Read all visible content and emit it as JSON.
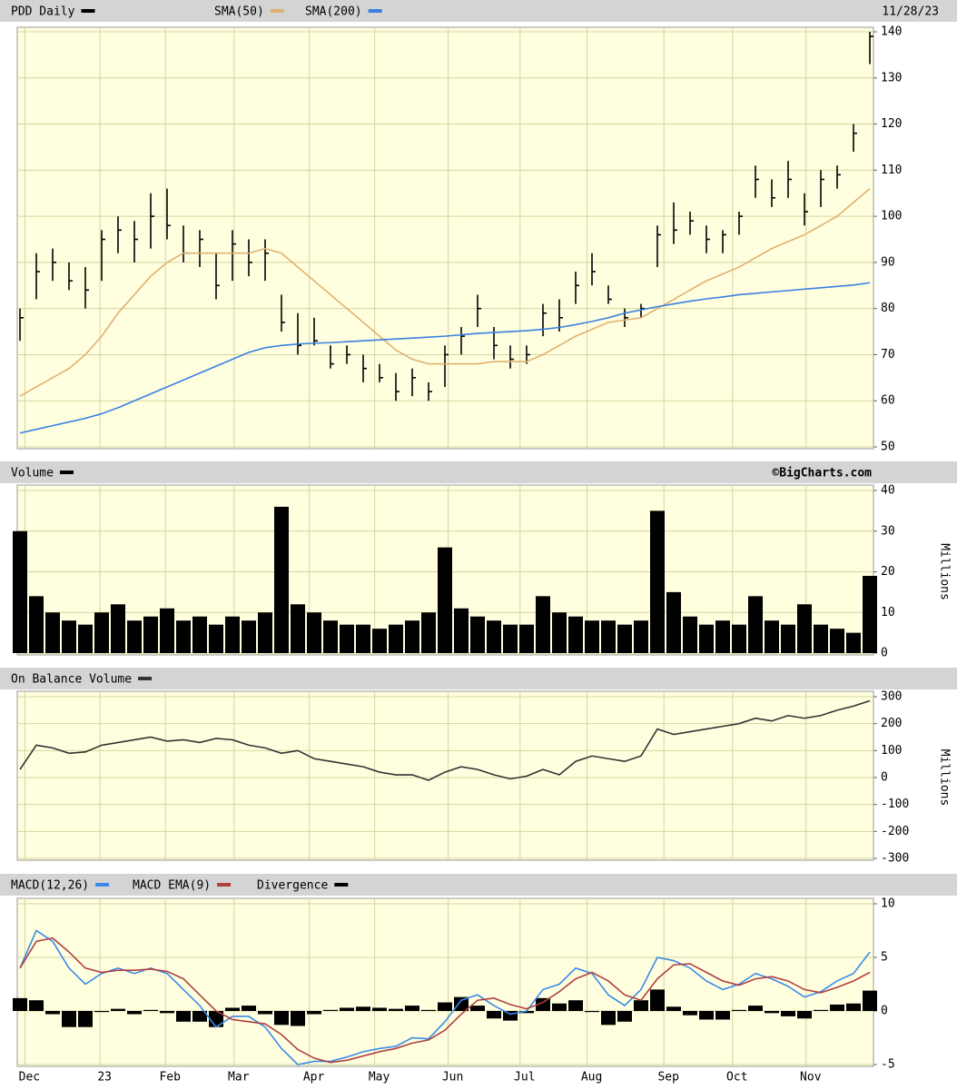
{
  "chart_data": [
    {
      "type": "ohlc",
      "date": "11/28/23",
      "xlim": [
        0,
        52
      ],
      "ylim": [
        50,
        140
      ],
      "yticks": [
        50,
        60,
        70,
        80,
        90,
        100,
        110,
        120,
        130,
        140
      ],
      "grid": true,
      "series": [
        {
          "name": "PDD Daily",
          "color": "#000000",
          "high": [
            80,
            92,
            93,
            90,
            89,
            97,
            100,
            99,
            105,
            106,
            98,
            97,
            92,
            97,
            95,
            95,
            83,
            79,
            78,
            72,
            72,
            70,
            68,
            66,
            67,
            64,
            72,
            76,
            83,
            76,
            72,
            72,
            81,
            82,
            88,
            92,
            85,
            80,
            81,
            98,
            103,
            101,
            98,
            97,
            101,
            111,
            108,
            112,
            105,
            110,
            111,
            120,
            140
          ],
          "low": [
            73,
            82,
            86,
            84,
            80,
            86,
            92,
            90,
            93,
            95,
            90,
            89,
            82,
            86,
            87,
            86,
            75,
            70,
            72,
            67,
            68,
            64,
            64,
            60,
            61,
            60,
            63,
            70,
            76,
            69,
            67,
            68,
            74,
            75,
            81,
            85,
            81,
            76,
            78,
            89,
            94,
            96,
            92,
            92,
            96,
            104,
            102,
            104,
            98,
            102,
            106,
            114,
            133
          ],
          "close": [
            78,
            88,
            90,
            86,
            84,
            95,
            97,
            95,
            100,
            98,
            92,
            95,
            85,
            94,
            90,
            92,
            77,
            72,
            73,
            68,
            70,
            67,
            65,
            62,
            65,
            62,
            70,
            74,
            80,
            72,
            69,
            70,
            79,
            78,
            85,
            88,
            82,
            78,
            80,
            96,
            97,
            99,
            95,
            96,
            100,
            108,
            104,
            108,
            101,
            108,
            109,
            118,
            139
          ]
        },
        {
          "name": "SMA(50)",
          "color": "#e0b070",
          "values": [
            61,
            63,
            65,
            67,
            70,
            74,
            79,
            83,
            87,
            90,
            92,
            92,
            92,
            92,
            92,
            93,
            92,
            89,
            86,
            83,
            80,
            77,
            74,
            71,
            69,
            68,
            68,
            68,
            68,
            68.5,
            68.5,
            68.5,
            70,
            72,
            74,
            75.5,
            77,
            77.5,
            78,
            80,
            82,
            84,
            86,
            87.5,
            89,
            91,
            93,
            94.5,
            96,
            98,
            100,
            103,
            106
          ]
        },
        {
          "name": "SMA(200)",
          "color": "#3a80e0",
          "values": [
            53,
            53.8,
            54.6,
            55.4,
            56.2,
            57.2,
            58.5,
            60,
            61.5,
            63,
            64.5,
            66,
            67.5,
            69,
            70.5,
            71.5,
            72,
            72.3,
            72.5,
            72.6,
            72.8,
            73,
            73.2,
            73.4,
            73.6,
            73.8,
            74,
            74.3,
            74.6,
            74.8,
            75,
            75.2,
            75.5,
            75.9,
            76.5,
            77.2,
            78,
            79,
            79.7,
            80.4,
            81,
            81.6,
            82.1,
            82.5,
            83,
            83.3,
            83.6,
            83.9,
            84.2,
            84.5,
            84.8,
            85.1,
            85.6
          ]
        }
      ]
    },
    {
      "type": "bar",
      "credit": "©BigCharts.com",
      "ylabel": "Millions",
      "xlim": [
        0,
        52
      ],
      "ylim": [
        0,
        40
      ],
      "yticks": [
        0,
        10,
        20,
        30,
        40
      ],
      "grid": true,
      "series": [
        {
          "name": "Volume",
          "color": "#000000",
          "values": [
            30,
            14,
            10,
            8,
            7,
            10,
            12,
            8,
            9,
            11,
            8,
            9,
            7,
            9,
            8,
            10,
            36,
            12,
            10,
            8,
            7,
            7,
            6,
            7,
            8,
            10,
            26,
            11,
            9,
            8,
            7,
            7,
            14,
            10,
            9,
            8,
            8,
            7,
            8,
            35,
            15,
            9,
            7,
            8,
            7,
            14,
            8,
            7,
            12,
            7,
            6,
            5,
            19
          ]
        }
      ]
    },
    {
      "type": "line",
      "ylabel": "Millions",
      "xlim": [
        0,
        52
      ],
      "ylim": [
        -300,
        300
      ],
      "yticks": [
        -300,
        -200,
        -100,
        0,
        100,
        200,
        300
      ],
      "grid": true,
      "series": [
        {
          "name": "On Balance Volume",
          "color": "#333333",
          "values": [
            30,
            120,
            110,
            90,
            95,
            120,
            130,
            140,
            150,
            135,
            140,
            130,
            145,
            140,
            120,
            110,
            90,
            100,
            70,
            60,
            50,
            40,
            20,
            10,
            10,
            -10,
            20,
            40,
            30,
            10,
            -5,
            5,
            30,
            10,
            60,
            80,
            70,
            60,
            80,
            180,
            160,
            170,
            180,
            190,
            200,
            220,
            210,
            230,
            220,
            230,
            250,
            265,
            285
          ]
        }
      ]
    },
    {
      "type": "line",
      "xlim": [
        0,
        52
      ],
      "ylim": [
        -5,
        10
      ],
      "yticks": [
        -5,
        0,
        5,
        10
      ],
      "grid": true,
      "xticks": [
        {
          "value": 0.3,
          "label": "Dec"
        },
        {
          "value": 4.9,
          "label": "23"
        },
        {
          "value": 8.9,
          "label": "Feb"
        },
        {
          "value": 13.1,
          "label": "Mar"
        },
        {
          "value": 17.7,
          "label": "Apr"
        },
        {
          "value": 21.7,
          "label": "May"
        },
        {
          "value": 26.2,
          "label": "Jun"
        },
        {
          "value": 30.6,
          "label": "Jul"
        },
        {
          "value": 34.7,
          "label": "Aug"
        },
        {
          "value": 39.4,
          "label": "Sep"
        },
        {
          "value": 43.6,
          "label": "Oct"
        },
        {
          "value": 48.1,
          "label": "Nov"
        }
      ],
      "series": [
        {
          "name": "MACD(12,26)",
          "color": "#3a8ae8",
          "values": [
            4,
            7.5,
            6.5,
            4,
            2.5,
            3.5,
            4,
            3.5,
            4,
            3.5,
            2,
            0.5,
            -1.5,
            -0.5,
            -0.5,
            -1.5,
            -3.5,
            -5,
            -4.7,
            -4.7,
            -4.3,
            -3.8,
            -3.5,
            -3.3,
            -2.5,
            -2.6,
            -1,
            1,
            1.5,
            0.5,
            -0.3,
            0,
            2,
            2.5,
            4,
            3.5,
            1.5,
            0.5,
            2,
            5,
            4.7,
            4,
            2.8,
            2,
            2.5,
            3.5,
            3,
            2.3,
            1.3,
            1.8,
            2.8,
            3.5,
            5.5
          ]
        },
        {
          "name": "MACD EMA(9)",
          "color": "#b04040",
          "values": [
            4,
            6.5,
            6.8,
            5.5,
            4,
            3.6,
            3.8,
            3.8,
            3.9,
            3.7,
            3,
            1.5,
            0,
            -0.8,
            -1,
            -1.2,
            -2.2,
            -3.6,
            -4.4,
            -4.8,
            -4.6,
            -4.2,
            -3.8,
            -3.5,
            -3,
            -2.7,
            -1.8,
            -0.3,
            1,
            1.2,
            0.6,
            0.2,
            0.8,
            1.8,
            3,
            3.6,
            2.8,
            1.5,
            1,
            3,
            4.3,
            4.4,
            3.6,
            2.8,
            2.4,
            3,
            3.2,
            2.8,
            2,
            1.7,
            2.2,
            2.8,
            3.6
          ]
        },
        {
          "name": "Divergence",
          "color": "#000000",
          "style": "histogram",
          "values": [
            1.2,
            1,
            -0.3,
            -1.5,
            -1.5,
            -0.1,
            0.2,
            -0.3,
            0.1,
            -0.2,
            -1,
            -1,
            -1.5,
            0.3,
            0.5,
            -0.3,
            -1.3,
            -1.4,
            -0.3,
            0.1,
            0.3,
            0.4,
            0.3,
            0.2,
            0.5,
            0.1,
            0.8,
            1.3,
            0.5,
            -0.7,
            -0.9,
            -0.2,
            1.2,
            0.7,
            1,
            -0.1,
            -1.3,
            -1,
            1,
            2,
            0.4,
            -0.4,
            -0.8,
            -0.8,
            0.1,
            0.5,
            -0.2,
            -0.5,
            -0.7,
            0.1,
            0.6,
            0.7,
            1.9
          ]
        }
      ]
    }
  ]
}
